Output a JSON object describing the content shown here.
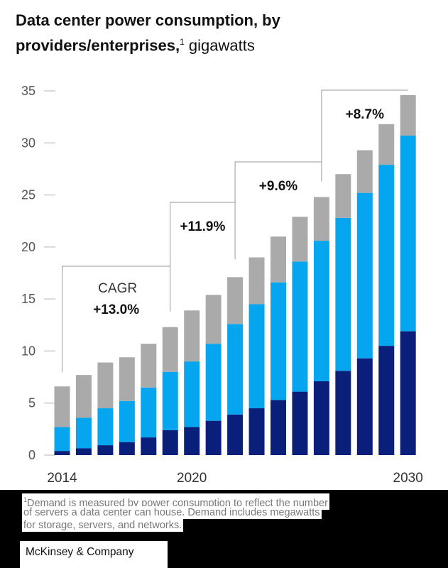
{
  "chart_data": {
    "type": "bar",
    "stacked": true,
    "title_bold": "Data center power consumption, by providers/enterprises,",
    "title_footnote_mark": "1",
    "title_unit": "gigawatts",
    "title_line1": "Data center power consumption, by",
    "title_line2_bold": "providers/enterprises,",
    "categories": [
      "2014",
      "2015",
      "2016",
      "2017",
      "2018",
      "2019",
      "2020",
      "2021",
      "2022",
      "2023",
      "2024",
      "2025",
      "2026",
      "2027",
      "2028",
      "2029",
      "2030"
    ],
    "x_tick_labels": [
      "2014",
      "2020",
      "2030"
    ],
    "y_ticks": [
      "0",
      "5",
      "10",
      "15",
      "20",
      "25",
      "30",
      "35"
    ],
    "ylim": [
      0,
      35
    ],
    "series": [
      {
        "color": "#0a1f7a",
        "values": [
          0.4,
          0.65,
          0.95,
          1.25,
          1.7,
          2.4,
          2.7,
          3.3,
          3.9,
          4.5,
          5.3,
          6.1,
          7.1,
          8.1,
          9.3,
          10.5,
          11.9
        ]
      },
      {
        "color": "#05a6ef",
        "values": [
          2.3,
          2.95,
          3.55,
          3.95,
          4.8,
          5.6,
          6.3,
          7.4,
          8.7,
          10.0,
          11.3,
          12.5,
          13.5,
          14.7,
          15.9,
          17.4,
          18.8
        ]
      },
      {
        "color": "#aaaaaa",
        "values": [
          3.9,
          4.1,
          4.4,
          4.2,
          4.2,
          4.3,
          4.9,
          4.7,
          4.5,
          4.5,
          4.4,
          4.3,
          4.2,
          4.2,
          4.1,
          3.9,
          3.9
        ]
      }
    ],
    "totals": [
      6.6,
      7.7,
      8.9,
      9.4,
      10.7,
      12.3,
      13.9,
      15.4,
      17.1,
      19.0,
      21.0,
      22.9,
      24.8,
      27.0,
      29.3,
      31.8,
      34.6
    ],
    "annotations": {
      "cagr_label": "CAGR",
      "periods": [
        {
          "from": "2014",
          "to": "2019",
          "label": "+13.0%"
        },
        {
          "from": "2019",
          "to": "2022",
          "label": "+11.9%"
        },
        {
          "from": "2022",
          "to": "2026",
          "label": "+9.6%"
        },
        {
          "from": "2026",
          "to": "2030",
          "label": "+8.7%"
        }
      ]
    }
  },
  "footnote": {
    "mark": "1",
    "lines": [
      "Demand is measured by power consumption to reflect the number",
      "of servers a data center can house. Demand includes megawatts",
      "for storage, servers, and networks."
    ]
  },
  "source": "McKinsey & Company"
}
